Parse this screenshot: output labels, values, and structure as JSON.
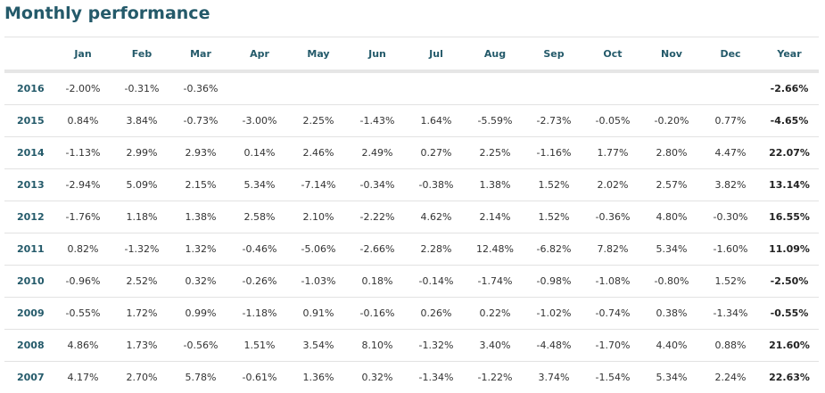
{
  "title": "Monthly performance",
  "table": {
    "headers": [
      "Jan",
      "Feb",
      "Mar",
      "Apr",
      "May",
      "Jun",
      "Jul",
      "Aug",
      "Sep",
      "Oct",
      "Nov",
      "Dec",
      "Year"
    ],
    "rows": [
      {
        "year": "2016",
        "months": [
          "-2.00%",
          "-0.31%",
          "-0.36%"
        ],
        "total": "-2.66%"
      },
      {
        "year": "2015",
        "months": [
          "0.84%",
          "3.84%",
          "-0.73%",
          "-3.00%",
          "2.25%",
          "-1.43%",
          "1.64%",
          "-5.59%",
          "-2.73%",
          "-0.05%",
          "-0.20%",
          "0.77%"
        ],
        "total": "-4.65%"
      },
      {
        "year": "2014",
        "months": [
          "-1.13%",
          "2.99%",
          "2.93%",
          "0.14%",
          "2.46%",
          "2.49%",
          "0.27%",
          "2.25%",
          "-1.16%",
          "1.77%",
          "2.80%",
          "4.47%"
        ],
        "total": "22.07%"
      },
      {
        "year": "2013",
        "months": [
          "-2.94%",
          "5.09%",
          "2.15%",
          "5.34%",
          "-7.14%",
          "-0.34%",
          "-0.38%",
          "1.38%",
          "1.52%",
          "2.02%",
          "2.57%",
          "3.82%"
        ],
        "total": "13.14%"
      },
      {
        "year": "2012",
        "months": [
          "-1.76%",
          "1.18%",
          "1.38%",
          "2.58%",
          "2.10%",
          "-2.22%",
          "4.62%",
          "2.14%",
          "1.52%",
          "-0.36%",
          "4.80%",
          "-0.30%"
        ],
        "total": "16.55%"
      },
      {
        "year": "2011",
        "months": [
          "0.82%",
          "-1.32%",
          "1.32%",
          "-0.46%",
          "-5.06%",
          "-2.66%",
          "2.28%",
          "12.48%",
          "-6.82%",
          "7.82%",
          "5.34%",
          "-1.60%"
        ],
        "total": "11.09%"
      },
      {
        "year": "2010",
        "months": [
          "-0.96%",
          "2.52%",
          "0.32%",
          "-0.26%",
          "-1.03%",
          "0.18%",
          "-0.14%",
          "-1.74%",
          "-0.98%",
          "-1.08%",
          "-0.80%",
          "1.52%"
        ],
        "total": "-2.50%"
      },
      {
        "year": "2009",
        "months": [
          "-0.55%",
          "1.72%",
          "0.99%",
          "-1.18%",
          "0.91%",
          "-0.16%",
          "0.26%",
          "0.22%",
          "-1.02%",
          "-0.74%",
          "0.38%",
          "-1.34%"
        ],
        "total": "-0.55%"
      },
      {
        "year": "2008",
        "months": [
          "4.86%",
          "1.73%",
          "-0.56%",
          "1.51%",
          "3.54%",
          "8.10%",
          "-1.32%",
          "3.40%",
          "-4.48%",
          "-1.70%",
          "4.40%",
          "0.88%"
        ],
        "total": "21.60%"
      },
      {
        "year": "2007",
        "months": [
          "4.17%",
          "2.70%",
          "5.78%",
          "-0.61%",
          "1.36%",
          "0.32%",
          "-1.34%",
          "-1.22%",
          "3.74%",
          "-1.54%",
          "5.34%",
          "2.24%"
        ],
        "total": "22.63%"
      }
    ]
  }
}
